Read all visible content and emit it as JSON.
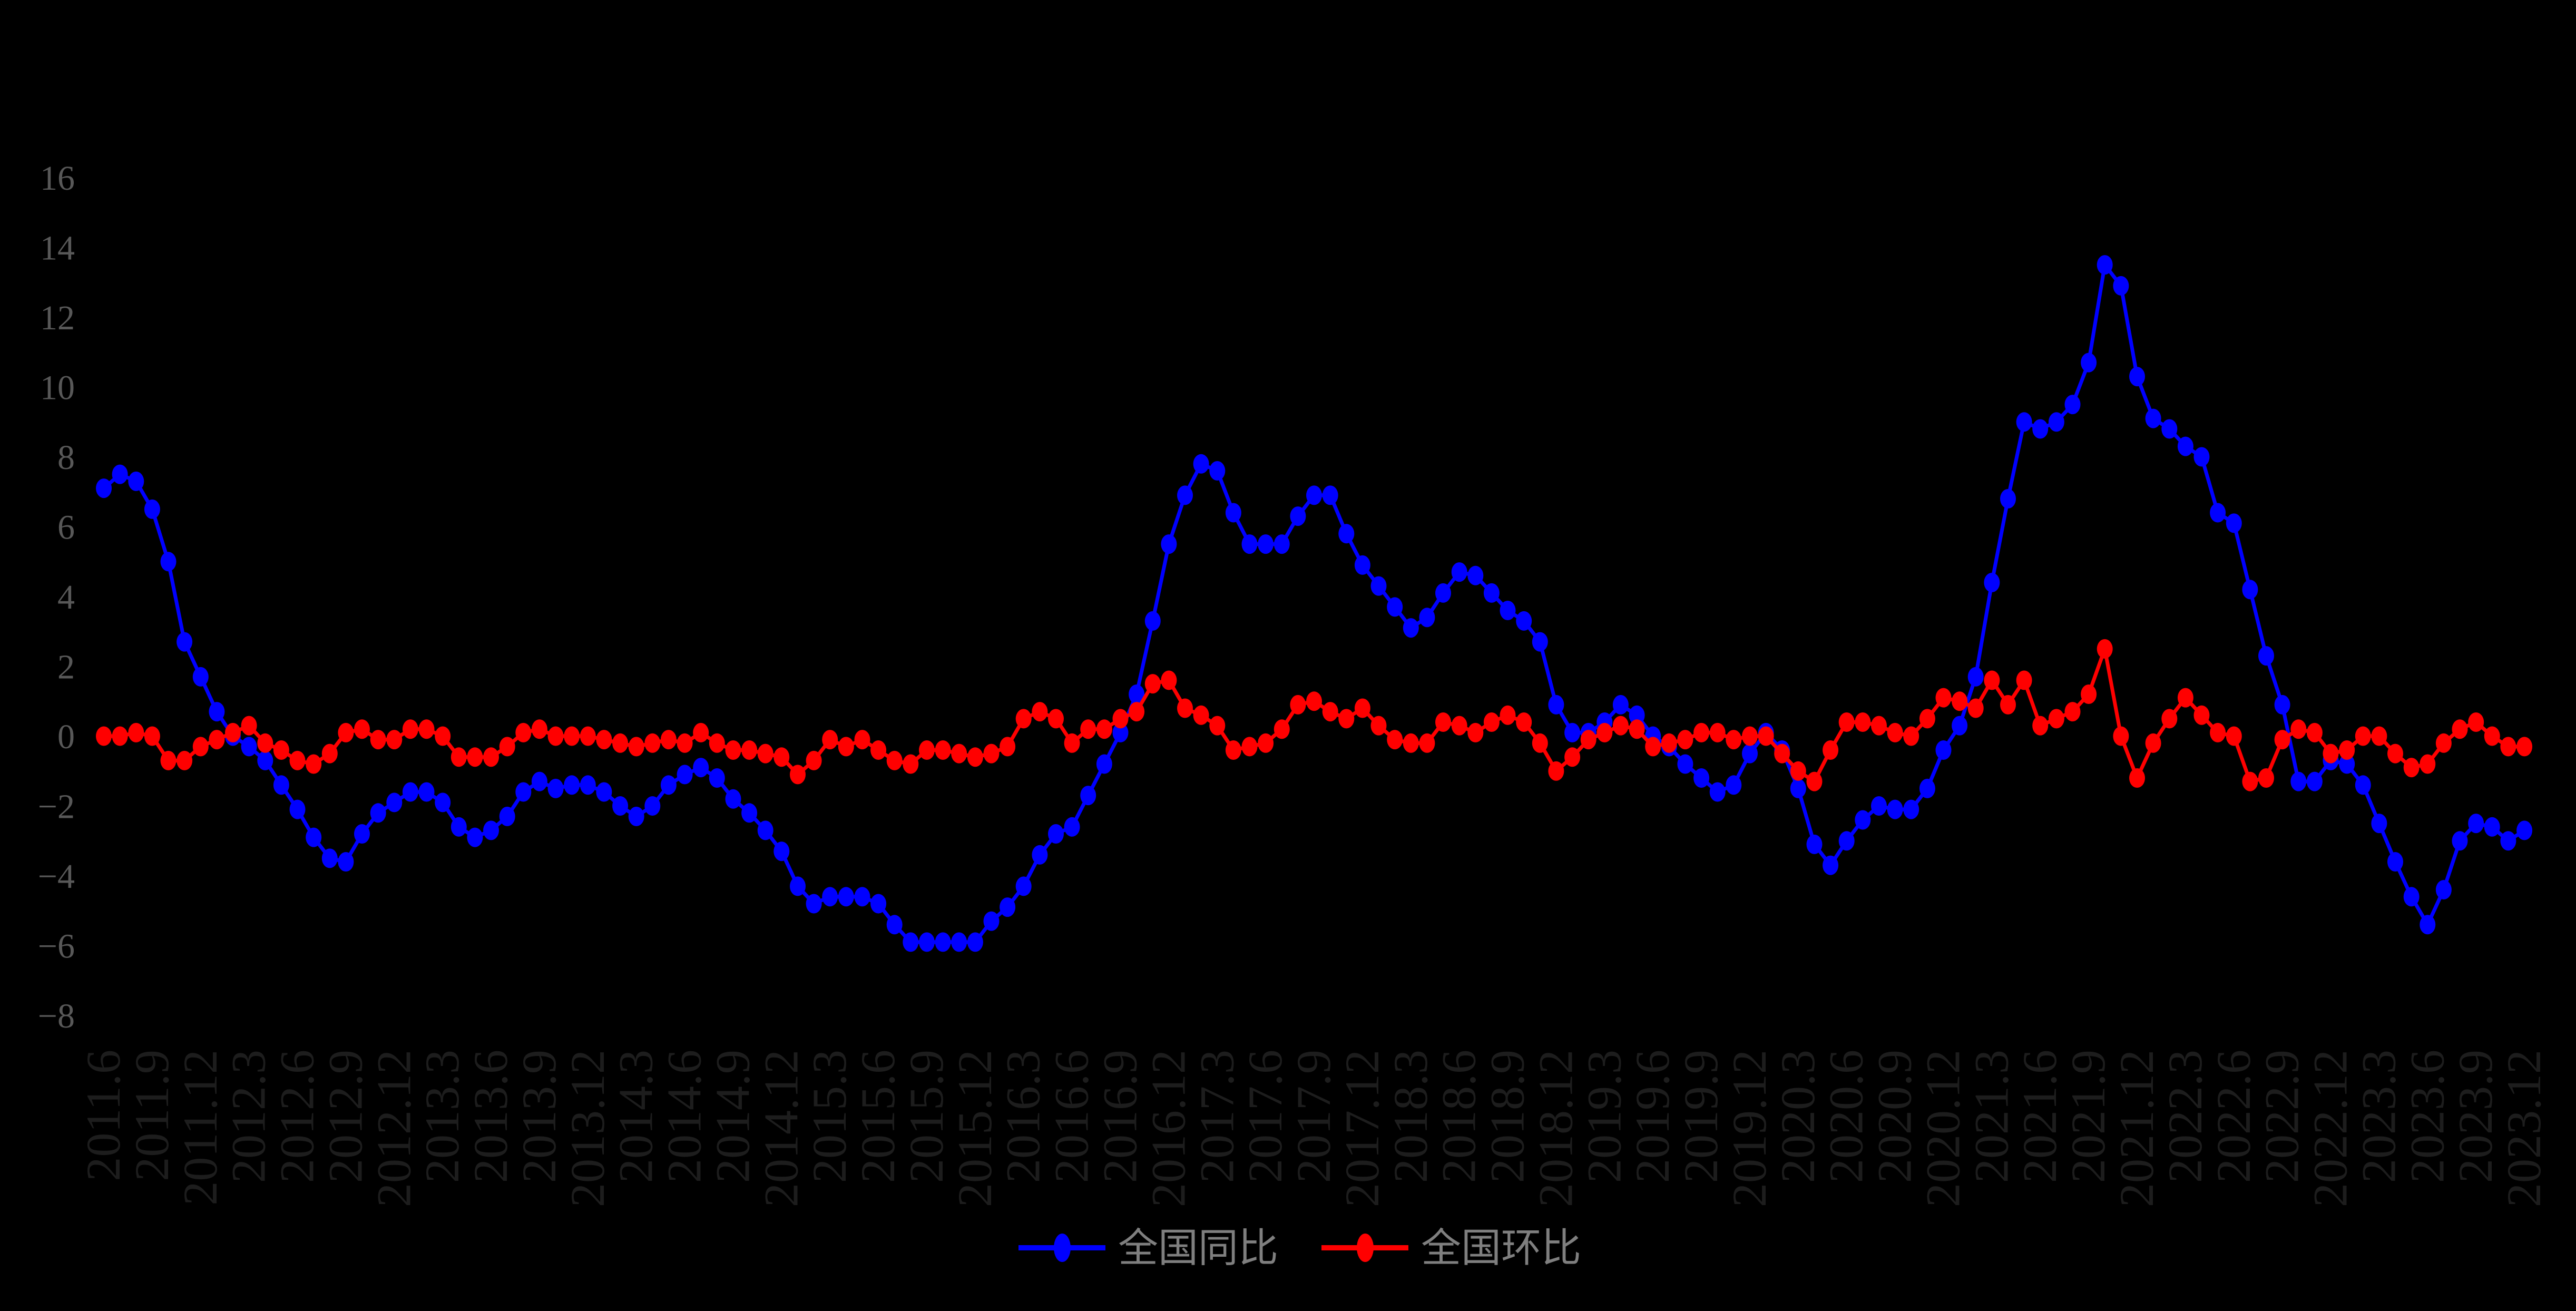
{
  "chart_data": {
    "type": "line",
    "title": "",
    "xlabel": "",
    "ylabel": "",
    "background": "#000000",
    "grid": false,
    "legend_position": "bottom-center",
    "ylim": [
      -8.8,
      17
    ],
    "y_ticks": [
      16,
      14,
      12,
      10,
      8,
      6,
      4,
      2,
      0,
      -2,
      -4,
      -6,
      -8
    ],
    "x_tick_every": 3,
    "x_tick_labels": [
      "2011.6",
      "2011.9",
      "2011.12",
      "2012.3",
      "2012.6",
      "2012.9",
      "2012.12",
      "2013.3",
      "2013.6",
      "2013.9",
      "2013.12",
      "2014.3",
      "2014.6",
      "2014.9",
      "2014.12",
      "2015.3",
      "2015.6",
      "2015.9",
      "2015.12",
      "2016.3",
      "2016.6",
      "2016.9",
      "2016.12",
      "2017.3",
      "2017.6",
      "2017.9",
      "2017.12",
      "2018.3",
      "2018.6",
      "2018.9",
      "2018.12",
      "2019.3",
      "2019.6",
      "2019.9",
      "2019.12",
      "2020.3",
      "2020.6",
      "2020.9",
      "2020.12",
      "2021.3",
      "2021.6",
      "2021.9",
      "2021.12",
      "2022.3",
      "2022.6",
      "2022.9",
      "2022.12",
      "2023.3",
      "2023.6",
      "2023.9",
      "2023.12"
    ],
    "x": [
      "2011.6",
      "2011.7",
      "2011.8",
      "2011.9",
      "2011.10",
      "2011.11",
      "2011.12",
      "2012.1",
      "2012.2",
      "2012.3",
      "2012.4",
      "2012.5",
      "2012.6",
      "2012.7",
      "2012.8",
      "2012.9",
      "2012.10",
      "2012.11",
      "2012.12",
      "2013.1",
      "2013.2",
      "2013.3",
      "2013.4",
      "2013.5",
      "2013.6",
      "2013.7",
      "2013.8",
      "2013.9",
      "2013.10",
      "2013.11",
      "2013.12",
      "2014.1",
      "2014.2",
      "2014.3",
      "2014.4",
      "2014.5",
      "2014.6",
      "2014.7",
      "2014.8",
      "2014.9",
      "2014.10",
      "2014.11",
      "2014.12",
      "2015.1",
      "2015.2",
      "2015.3",
      "2015.4",
      "2015.5",
      "2015.6",
      "2015.7",
      "2015.8",
      "2015.9",
      "2015.10",
      "2015.11",
      "2015.12",
      "2016.1",
      "2016.2",
      "2016.3",
      "2016.4",
      "2016.5",
      "2016.6",
      "2016.7",
      "2016.8",
      "2016.9",
      "2016.10",
      "2016.11",
      "2016.12",
      "2017.1",
      "2017.2",
      "2017.3",
      "2017.4",
      "2017.5",
      "2017.6",
      "2017.7",
      "2017.8",
      "2017.9",
      "2017.10",
      "2017.11",
      "2017.12",
      "2018.1",
      "2018.2",
      "2018.3",
      "2018.4",
      "2018.5",
      "2018.6",
      "2018.7",
      "2018.8",
      "2018.9",
      "2018.10",
      "2018.11",
      "2018.12",
      "2019.1",
      "2019.2",
      "2019.3",
      "2019.4",
      "2019.5",
      "2019.6",
      "2019.7",
      "2019.8",
      "2019.9",
      "2019.10",
      "2019.11",
      "2019.12",
      "2020.1",
      "2020.2",
      "2020.3",
      "2020.4",
      "2020.5",
      "2020.6",
      "2020.7",
      "2020.8",
      "2020.9",
      "2020.10",
      "2020.11",
      "2020.12",
      "2021.1",
      "2021.2",
      "2021.3",
      "2021.4",
      "2021.5",
      "2021.6",
      "2021.7",
      "2021.8",
      "2021.9",
      "2021.10",
      "2021.11",
      "2021.12",
      "2022.1",
      "2022.2",
      "2022.3",
      "2022.4",
      "2022.5",
      "2022.6",
      "2022.7",
      "2022.8",
      "2022.9",
      "2022.10",
      "2022.11",
      "2022.12",
      "2023.1",
      "2023.2",
      "2023.3",
      "2023.4",
      "2023.5",
      "2023.6",
      "2023.7",
      "2023.8",
      "2023.9",
      "2023.10",
      "2023.11",
      "2023.12"
    ],
    "series": [
      {
        "name": "全国同比",
        "color": "#0000ff",
        "values": [
          7.1,
          7.5,
          7.3,
          6.5,
          5.0,
          2.7,
          1.7,
          0.7,
          0.0,
          -0.3,
          -0.7,
          -1.4,
          -2.1,
          -2.9,
          -3.5,
          -3.6,
          -2.8,
          -2.2,
          -1.9,
          -1.6,
          -1.6,
          -1.9,
          -2.6,
          -2.9,
          -2.7,
          -2.3,
          -1.6,
          -1.3,
          -1.5,
          -1.4,
          -1.4,
          -1.6,
          -2.0,
          -2.3,
          -2.0,
          -1.4,
          -1.1,
          -0.9,
          -1.2,
          -1.8,
          -2.2,
          -2.7,
          -3.3,
          -4.3,
          -4.8,
          -4.6,
          -4.6,
          -4.6,
          -4.8,
          -5.4,
          -5.9,
          -5.9,
          -5.9,
          -5.9,
          -5.9,
          -5.3,
          -4.9,
          -4.3,
          -3.4,
          -2.8,
          -2.6,
          -1.7,
          -0.8,
          0.1,
          1.2,
          3.3,
          5.5,
          6.9,
          7.8,
          7.6,
          6.4,
          5.5,
          5.5,
          5.5,
          6.3,
          6.9,
          6.9,
          5.8,
          4.9,
          4.3,
          3.7,
          3.1,
          3.4,
          4.1,
          4.7,
          4.6,
          4.1,
          3.6,
          3.3,
          2.7,
          0.9,
          0.1,
          0.1,
          0.4,
          0.9,
          0.6,
          0.0,
          -0.3,
          -0.8,
          -1.2,
          -1.6,
          -1.4,
          -0.5,
          0.1,
          -0.4,
          -1.5,
          -3.1,
          -3.7,
          -3.0,
          -2.4,
          -2.0,
          -2.1,
          -2.1,
          -1.5,
          -0.4,
          0.3,
          1.7,
          4.4,
          6.8,
          9.0,
          8.8,
          9.0,
          9.5,
          10.7,
          13.5,
          12.9,
          10.3,
          9.1,
          8.8,
          8.3,
          8.0,
          6.4,
          6.1,
          4.2,
          2.3,
          0.9,
          -1.3,
          -1.3,
          -0.7,
          -0.8,
          -1.4,
          -2.5,
          -3.6,
          -4.6,
          -5.4,
          -4.4,
          -3.0,
          -2.5,
          -2.6,
          -3.0,
          -2.7
        ]
      },
      {
        "name": "全国环比",
        "color": "#ff0000",
        "values": [
          0.0,
          0.0,
          0.1,
          0.0,
          -0.7,
          -0.7,
          -0.3,
          -0.1,
          0.1,
          0.3,
          -0.2,
          -0.4,
          -0.7,
          -0.8,
          -0.5,
          0.1,
          0.2,
          -0.1,
          -0.1,
          0.2,
          0.2,
          0.0,
          -0.6,
          -0.6,
          -0.6,
          -0.3,
          0.1,
          0.2,
          0.0,
          0.0,
          0.0,
          -0.1,
          -0.2,
          -0.3,
          -0.2,
          -0.1,
          -0.2,
          0.1,
          -0.2,
          -0.4,
          -0.4,
          -0.5,
          -0.6,
          -1.1,
          -0.7,
          -0.1,
          -0.3,
          -0.1,
          -0.4,
          -0.7,
          -0.8,
          -0.4,
          -0.4,
          -0.5,
          -0.6,
          -0.5,
          -0.3,
          0.5,
          0.7,
          0.5,
          -0.2,
          0.2,
          0.2,
          0.5,
          0.7,
          1.5,
          1.6,
          0.8,
          0.6,
          0.3,
          -0.4,
          -0.3,
          -0.2,
          0.2,
          0.9,
          1.0,
          0.7,
          0.5,
          0.8,
          0.3,
          -0.1,
          -0.2,
          -0.2,
          0.4,
          0.3,
          0.1,
          0.4,
          0.6,
          0.4,
          -0.2,
          -1.0,
          -0.6,
          -0.1,
          0.1,
          0.3,
          0.2,
          -0.3,
          -0.2,
          -0.1,
          0.1,
          0.1,
          -0.1,
          0.0,
          0.0,
          -0.5,
          -1.0,
          -1.3,
          -0.4,
          0.4,
          0.4,
          0.3,
          0.1,
          0.0,
          0.5,
          1.1,
          1.0,
          0.8,
          1.6,
          0.9,
          1.6,
          0.3,
          0.5,
          0.7,
          1.2,
          2.5,
          0.0,
          -1.2,
          -0.2,
          0.5,
          1.1,
          0.6,
          0.1,
          0.0,
          -1.3,
          -1.2,
          -0.1,
          0.2,
          0.1,
          -0.5,
          -0.4,
          0.0,
          0.0,
          -0.5,
          -0.9,
          -0.8,
          -0.2,
          0.2,
          0.4,
          0.0,
          -0.3,
          -0.3
        ]
      }
    ]
  },
  "legend": {
    "items": [
      {
        "label": "全国同比",
        "color": "#0000ff",
        "marker": "ellipse-on-line"
      },
      {
        "label": "全国环比",
        "color": "#ff0000",
        "marker": "ellipse-on-line"
      }
    ]
  },
  "styles": {
    "y_tick_color": "#585858",
    "x_tick_color": "#1d1d1d",
    "legend_text_color": "#7f7f7f",
    "background": "#000000"
  }
}
